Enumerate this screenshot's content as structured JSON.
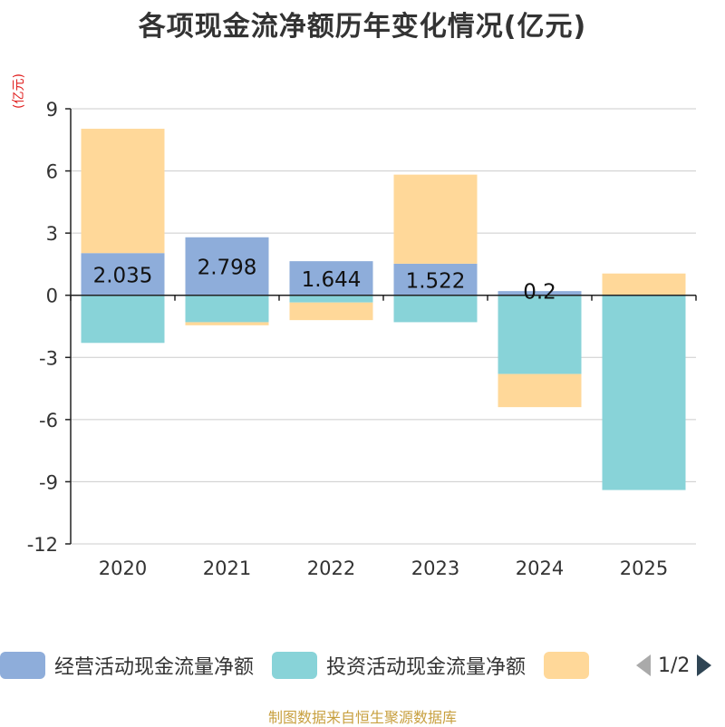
{
  "chart_data": {
    "type": "bar",
    "stacked": true,
    "title": "各项现金流净额历年变化情况(亿元)",
    "ylabel": "(亿元)",
    "xlabel": "",
    "ylim": [
      -12,
      9
    ],
    "yticks": [
      9,
      6,
      3,
      0,
      -3,
      -6,
      -9,
      -12
    ],
    "categories": [
      "2020",
      "2021",
      "2022",
      "2023",
      "2024",
      "2025"
    ],
    "series": [
      {
        "name": "经营活动现金流量净额",
        "color": "#8eadda",
        "values": [
          2.035,
          2.798,
          1.644,
          1.522,
          0.2,
          0.0
        ]
      },
      {
        "name": "投资活动现金流量净额",
        "color": "#88d3d8",
        "values": [
          -2.3,
          -1.3,
          -0.35,
          -1.3,
          -3.8,
          -9.4
        ]
      },
      {
        "name": "",
        "color": "#ffd899",
        "values": [
          6.0,
          -0.15,
          -0.85,
          4.3,
          -1.6,
          1.05
        ]
      }
    ],
    "data_labels": [
      "2.035",
      "2.798",
      "1.644",
      "1.522",
      "0.2",
      ""
    ],
    "legend_position": "bottom"
  },
  "legend": {
    "page": "1/2"
  },
  "footer": "制图数据来自恒生聚源数据库"
}
